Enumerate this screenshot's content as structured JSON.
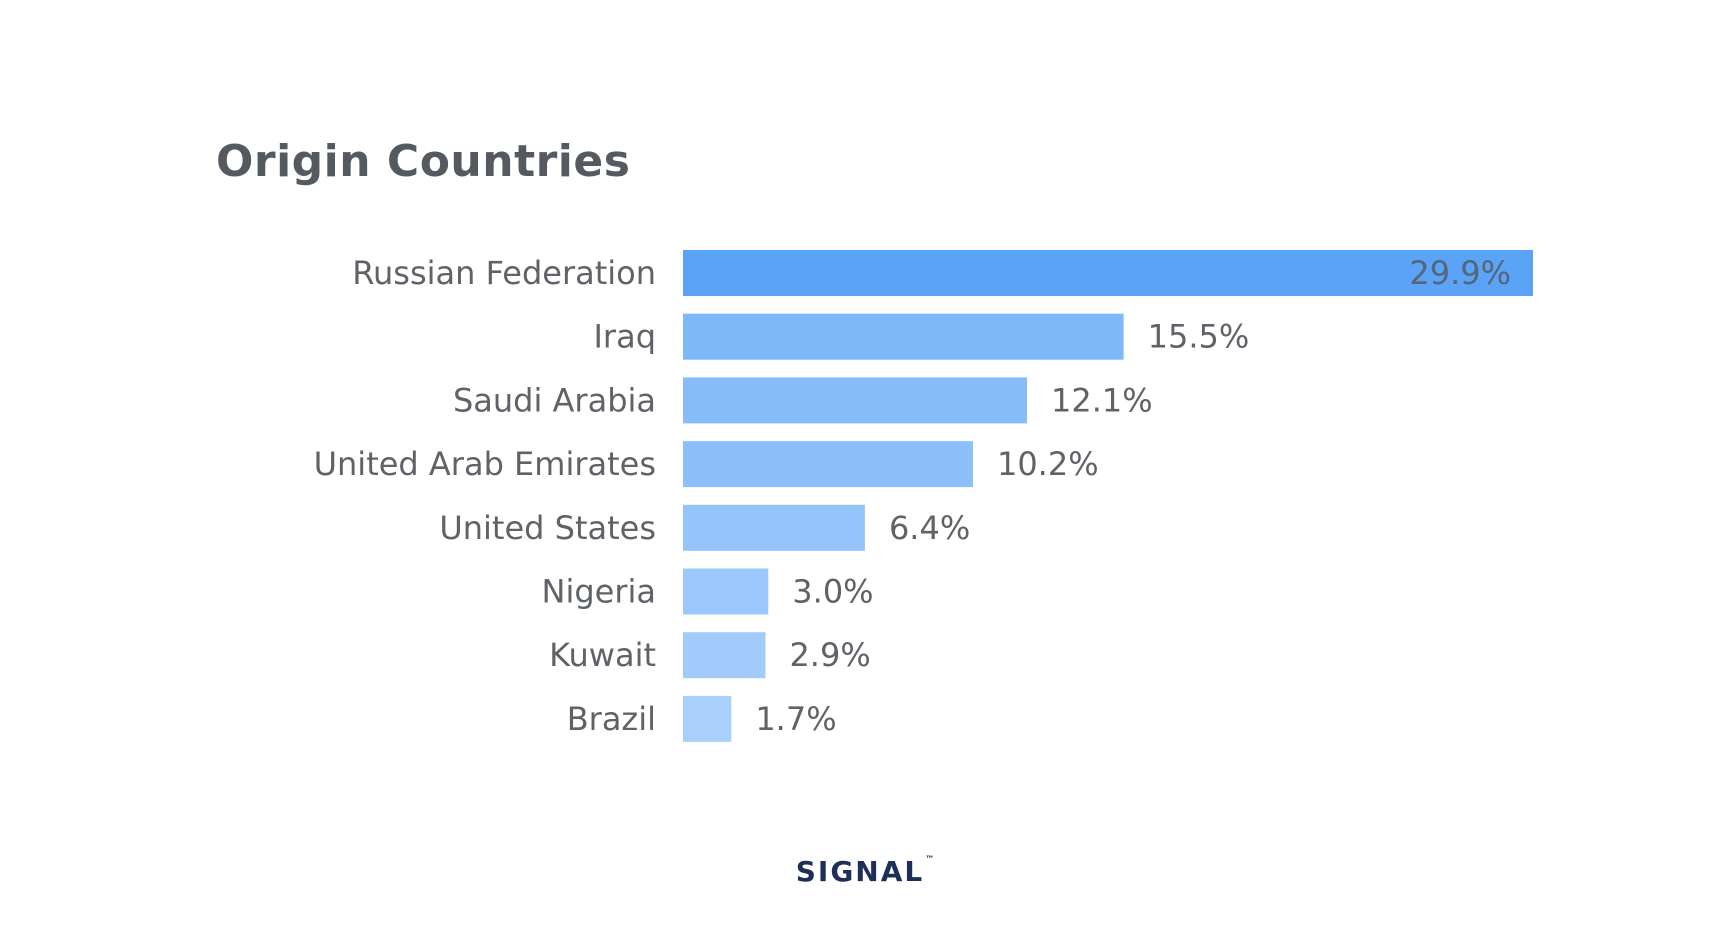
{
  "chart_data": {
    "type": "bar",
    "orientation": "horizontal",
    "title": "Origin Countries",
    "categories": [
      "Russian Federation",
      "Iraq",
      "Saudi Arabia",
      "United Arab Emirates",
      "United States",
      "Nigeria",
      "Kuwait",
      "Brazil"
    ],
    "values": [
      29.9,
      15.5,
      12.1,
      10.2,
      6.4,
      3.0,
      2.9,
      1.7
    ],
    "value_labels": [
      "29.9%",
      "15.5%",
      "12.1%",
      "10.2%",
      "6.4%",
      "3.0%",
      "2.9%",
      "1.7%"
    ],
    "unit": "%",
    "xlim": [
      0,
      29.9
    ],
    "grid": false,
    "legend": "none",
    "colors": {
      "top_bar": "#5ba3f7",
      "bars_gradient_start": "#7fb8f9",
      "bars_gradient_end": "#a9cffb"
    }
  },
  "branding": {
    "logo_text": "SIGNAL",
    "logo_mark": "™",
    "logo_color": "#1e2f5a"
  }
}
